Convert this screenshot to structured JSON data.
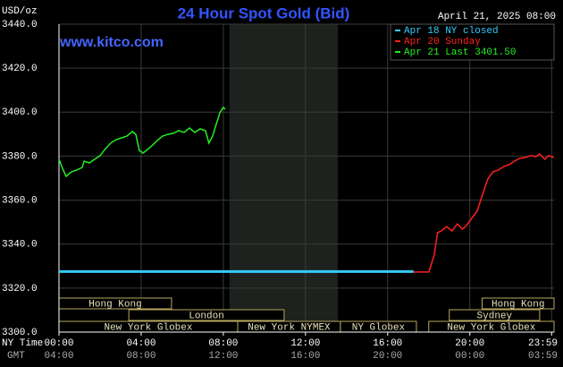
{
  "chart_data": {
    "type": "line",
    "title": "24 Hour Spot Gold (Bid)",
    "y_unit": "USD/oz",
    "timestamp": "April 21, 2025 08:00",
    "watermark": "www.kitco.com",
    "xlim": [
      0,
      24.1
    ],
    "ylim": [
      3300,
      3440
    ],
    "yticks": [
      {
        "value": 3300,
        "label": "3300.0"
      },
      {
        "value": 3320,
        "label": "3320.0"
      },
      {
        "value": 3340,
        "label": "3340.0"
      },
      {
        "value": 3360,
        "label": "3360.0"
      },
      {
        "value": 3380,
        "label": "3380.0"
      },
      {
        "value": 3400,
        "label": "3400.0"
      },
      {
        "value": 3420,
        "label": "3420.0"
      },
      {
        "value": 3440,
        "label": "3440.0"
      }
    ],
    "xticks": [
      {
        "value": 0,
        "label": "00:00"
      },
      {
        "value": 4,
        "label": "04:00"
      },
      {
        "value": 8,
        "label": "08:00"
      },
      {
        "value": 12,
        "label": "12:00"
      },
      {
        "value": 16,
        "label": "16:00"
      },
      {
        "value": 20,
        "label": "20:00"
      },
      {
        "value": 23.98,
        "label": "23:59"
      }
    ],
    "x_axis_label": "NY Time",
    "x2_axis_label": "GMT",
    "gmt_labels": [
      "04:00",
      "08:00",
      "12:00",
      "16:00",
      "20:00",
      "00:00",
      "03:59"
    ],
    "grid": true,
    "legend": "top-right",
    "shaded_x": [
      8.3,
      13.57
    ],
    "session_rows": [
      [
        {
          "name": "Hong Kong",
          "start": 0,
          "end": 5.48
        },
        {
          "name": "Hong Kong",
          "start": 20.6,
          "end": 24.1
        }
      ],
      [
        {
          "name": "London",
          "start": 3.4,
          "end": 10.96
        },
        {
          "name": "Sydney",
          "start": 19.0,
          "end": 23.4
        }
      ],
      [
        {
          "name": "New York Globex",
          "start": 0,
          "end": 8.7
        },
        {
          "name": "New York NYMEX",
          "start": 8.7,
          "end": 13.7
        },
        {
          "name": "NY Globex",
          "start": 13.7,
          "end": 17.4
        },
        {
          "name": "New York Globex",
          "start": 18.0,
          "end": 24.1
        }
      ]
    ],
    "series": [
      {
        "name": "Apr 18 NY closed",
        "color": "#33ccff",
        "x": [
          0,
          17.26
        ],
        "values": [
          3327.5,
          3327.5
        ]
      },
      {
        "name": "Apr 20 Sunday",
        "color": "#ff2020",
        "x": [
          17.26,
          18.0,
          18.09,
          18.26,
          18.43,
          18.61,
          18.87,
          19.13,
          19.39,
          19.65,
          19.83,
          20.09,
          20.35,
          20.61,
          20.87,
          21.13,
          21.39,
          21.65,
          21.91,
          22.17,
          22.43,
          22.7,
          22.96,
          23.22,
          23.39,
          23.65,
          23.83,
          24.09
        ],
        "values": [
          3327.3,
          3327.3,
          3329.7,
          3335.0,
          3345.2,
          3346.0,
          3348.0,
          3346.0,
          3349.2,
          3346.8,
          3348.4,
          3351.7,
          3354.9,
          3362.3,
          3369.6,
          3372.9,
          3373.7,
          3375.3,
          3376.1,
          3377.7,
          3379.0,
          3379.4,
          3380.2,
          3379.8,
          3381.0,
          3378.6,
          3380.2,
          3379.4
        ]
      },
      {
        "name": "Apr 21 Last 3401.50",
        "color": "#22ee22",
        "x": [
          0,
          0.17,
          0.35,
          0.61,
          0.87,
          1.13,
          1.22,
          1.48,
          1.74,
          2.0,
          2.26,
          2.52,
          2.78,
          3.04,
          3.3,
          3.57,
          3.74,
          3.91,
          4.09,
          4.26,
          4.52,
          4.78,
          5.04,
          5.3,
          5.57,
          5.83,
          6.09,
          6.35,
          6.61,
          6.87,
          7.13,
          7.3,
          7.48,
          7.65,
          7.83,
          8.0,
          8.09
        ],
        "values": [
          3378.6,
          3374.5,
          3370.8,
          3372.9,
          3373.7,
          3374.9,
          3377.7,
          3376.9,
          3378.6,
          3380.2,
          3383.4,
          3385.9,
          3387.5,
          3388.3,
          3389.1,
          3391.2,
          3389.9,
          3382.6,
          3381.4,
          3382.6,
          3384.7,
          3387.1,
          3389.1,
          3389.9,
          3390.4,
          3391.6,
          3390.8,
          3392.8,
          3390.8,
          3392.4,
          3391.6,
          3385.9,
          3389.1,
          3394.4,
          3399.7,
          3402.2,
          3401.3
        ]
      }
    ]
  }
}
